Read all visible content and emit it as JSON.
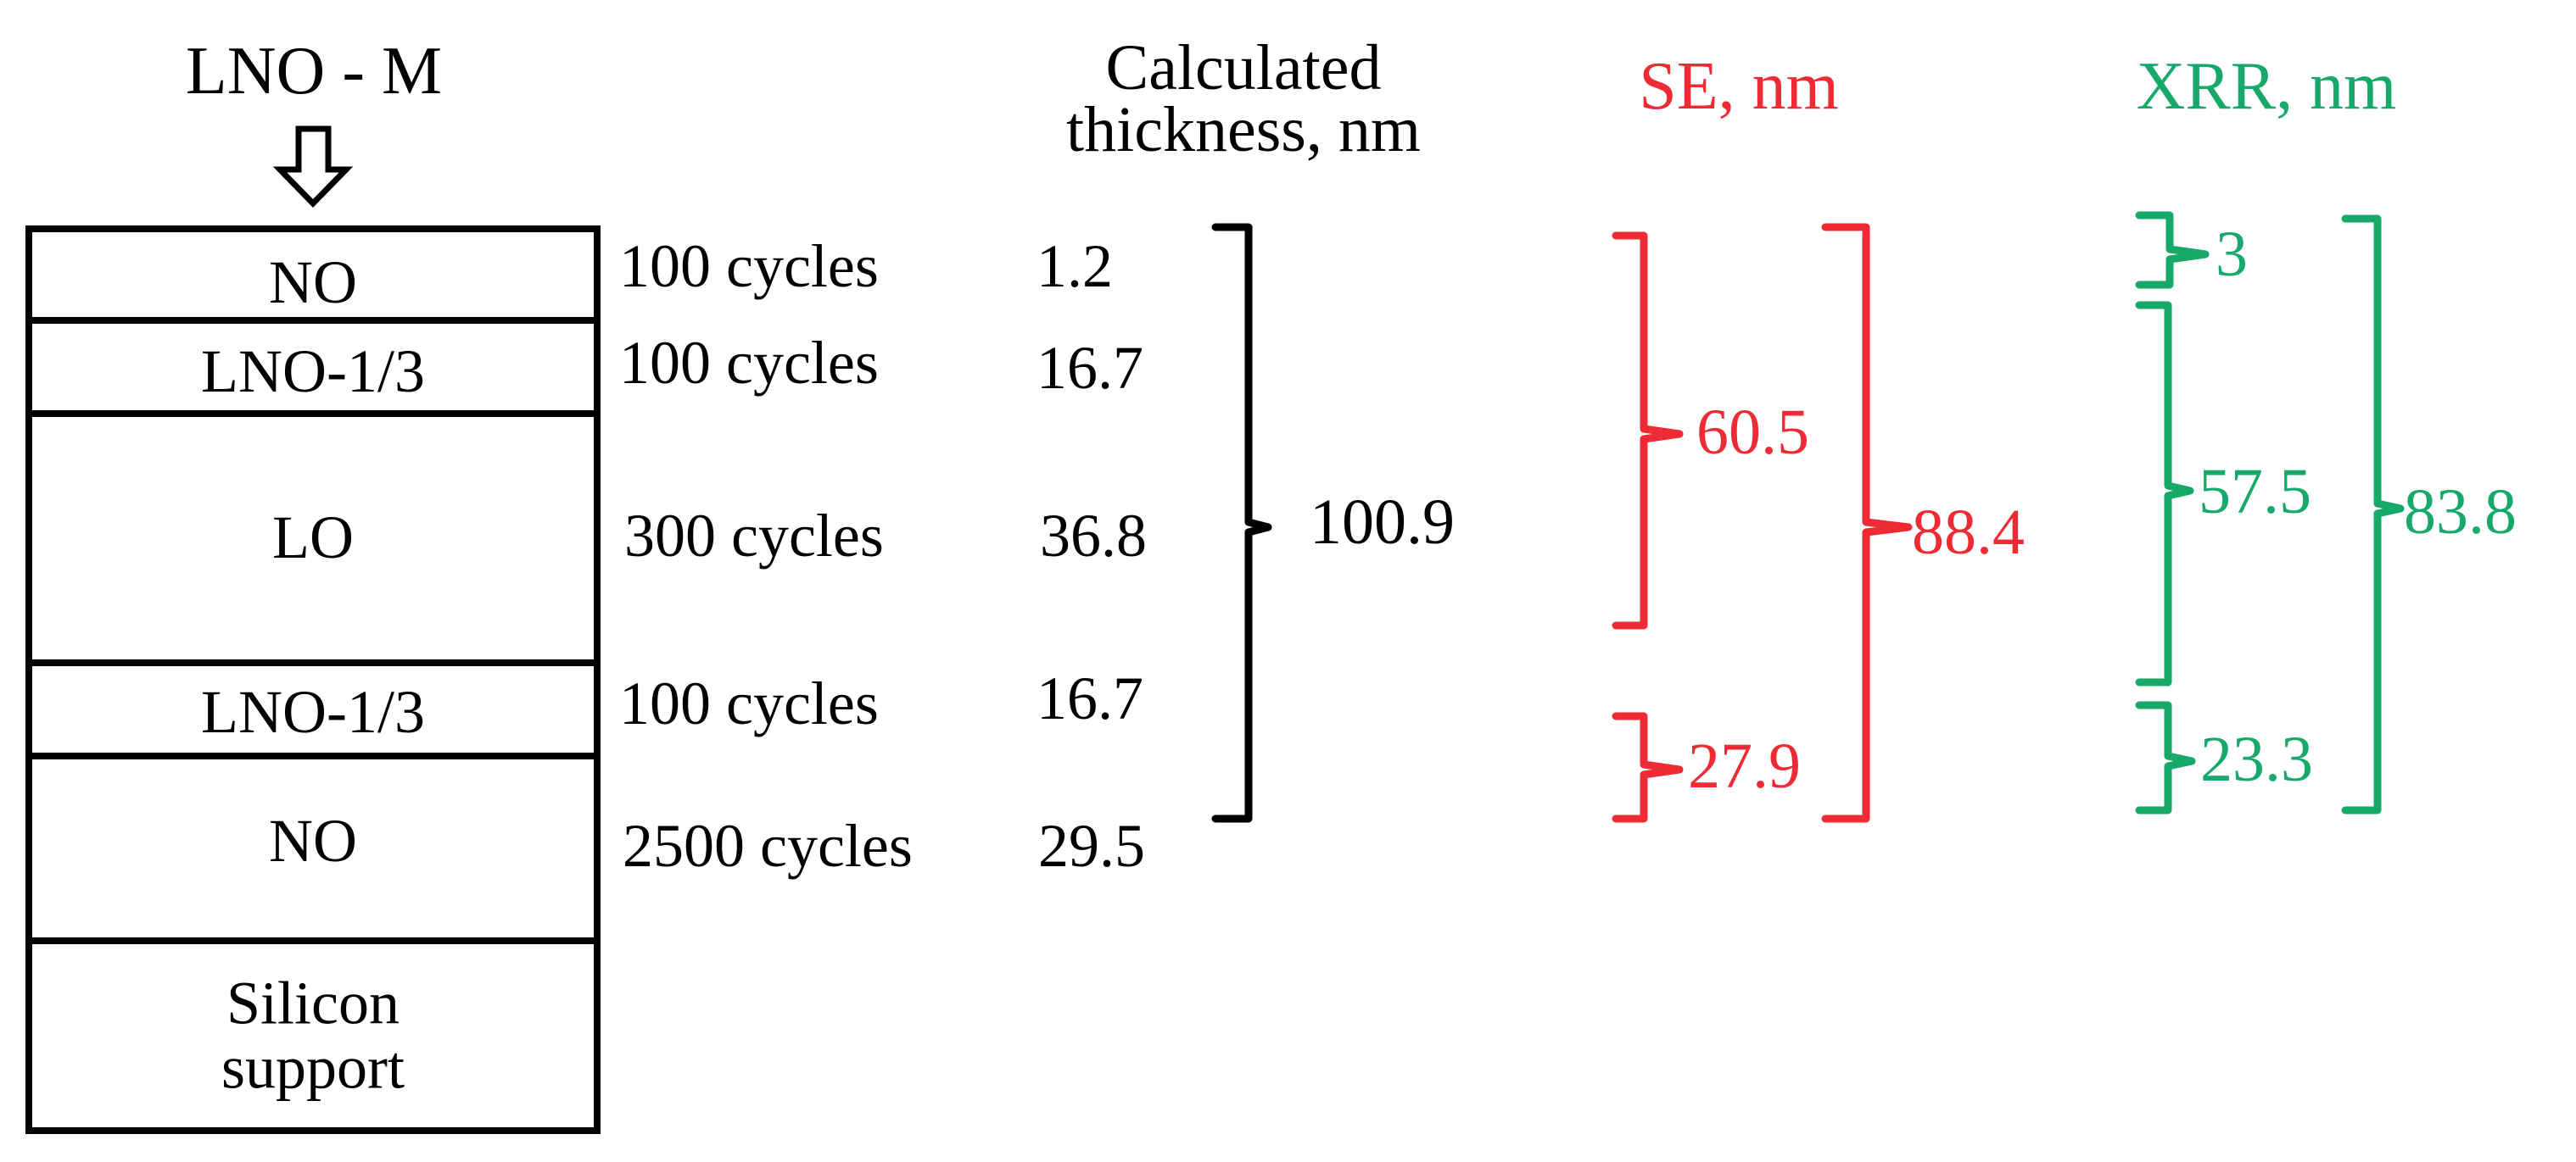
{
  "sample_label": "LNO - M",
  "icons": {
    "arrow": "down-arrow-icon"
  },
  "colors": {
    "black": "#000000",
    "se": "#ee2b34",
    "xrr": "#16a96a"
  },
  "layers": [
    {
      "name": "NO",
      "cycles": "100 cycles",
      "thickness": "1.2"
    },
    {
      "name": "LNO-1/3",
      "cycles": "100 cycles",
      "thickness": "16.7"
    },
    {
      "name": "LO",
      "cycles": "300 cycles",
      "thickness": "36.8"
    },
    {
      "name": "LNO-1/3",
      "cycles": "100 cycles",
      "thickness": "16.7"
    },
    {
      "name": "NO",
      "cycles": "2500 cycles",
      "thickness": "29.5"
    },
    {
      "name": "Silicon support"
    }
  ],
  "headers": {
    "calculated": "Calculated thickness, nm",
    "se": "SE, nm",
    "xrr": "XRR, nm"
  },
  "totals": {
    "calculated": "100.9",
    "se_top": "60.5",
    "se_bottom": "27.9",
    "se_total": "88.4",
    "xrr_top": "3",
    "xrr_middle": "57.5",
    "xrr_bottom": "23.3",
    "xrr_total": "83.8"
  }
}
